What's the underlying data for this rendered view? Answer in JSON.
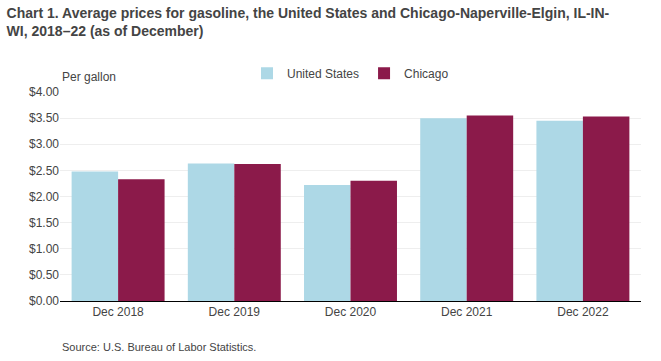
{
  "chart_data": {
    "type": "bar",
    "title": "Chart 1. Average prices for gasoline, the United States and Chicago-Naperville-Elgin, IL-IN-\nWI, 2018–22 (as of December)",
    "ylabel": "Per gallon",
    "annotations": [
      "Source: U.S. Bureau of Labor Statistics."
    ],
    "categories": [
      "Dec 2018",
      "Dec 2019",
      "Dec 2020",
      "Dec 2021",
      "Dec 2022"
    ],
    "series": [
      {
        "name": "United States",
        "color": "#add8e6",
        "values": [
          2.48,
          2.63,
          2.22,
          3.5,
          3.45
        ]
      },
      {
        "name": "Chicago",
        "color": "#8b1a4a",
        "values": [
          2.33,
          2.62,
          2.3,
          3.55,
          3.53
        ]
      }
    ],
    "ylim": [
      0,
      4.0
    ],
    "yticks": [
      {
        "value": 0.0,
        "label": "$0.00"
      },
      {
        "value": 0.5,
        "label": "$0.50"
      },
      {
        "value": 1.0,
        "label": "$1.00"
      },
      {
        "value": 1.5,
        "label": "$1.50"
      },
      {
        "value": 2.0,
        "label": "$2.00"
      },
      {
        "value": 2.5,
        "label": "$2.50"
      },
      {
        "value": 3.0,
        "label": "$3.00"
      },
      {
        "value": 3.5,
        "label": "$3.50"
      },
      {
        "value": 4.0,
        "label": "$4.00"
      }
    ],
    "grid": true,
    "legend": "top"
  }
}
